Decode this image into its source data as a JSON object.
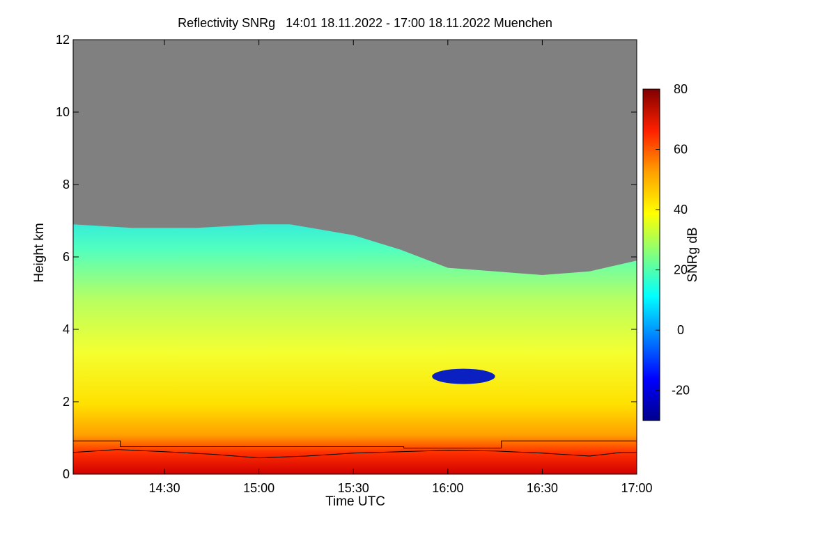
{
  "chart_data": {
    "type": "heatmap",
    "title": "Reflectivity SNRg   14:01 18.11.2022 - 17:00 18.11.2022 Muenchen",
    "xlabel": "Time UTC",
    "ylabel": "Height km",
    "xlim": [
      "14:01",
      "17:00"
    ],
    "ylim": [
      0,
      12
    ],
    "x_ticks": [
      "14:30",
      "15:00",
      "15:30",
      "16:00",
      "16:30",
      "17:00"
    ],
    "y_ticks": [
      "0",
      "2",
      "4",
      "6",
      "8",
      "10",
      "12"
    ],
    "colorbar": {
      "label": "SNRg dB",
      "range": [
        -30,
        80
      ],
      "ticks": [
        "-20",
        "0",
        "20",
        "40",
        "60",
        "80"
      ],
      "colors": [
        "#00008b",
        "#0000ff",
        "#0080ff",
        "#00ffff",
        "#80ff80",
        "#ffff00",
        "#ffa000",
        "#ff2000",
        "#800000"
      ]
    },
    "background_color": "#808080",
    "echo_top_km": {
      "times": [
        "14:01",
        "14:20",
        "14:40",
        "15:00",
        "15:10",
        "15:30",
        "15:45",
        "16:00",
        "16:15",
        "16:30",
        "16:45",
        "17:00"
      ],
      "heights": [
        6.9,
        6.8,
        6.8,
        6.9,
        6.9,
        6.6,
        6.2,
        5.7,
        5.6,
        5.5,
        5.6,
        5.9
      ]
    },
    "cloud_base_km": {
      "times": [
        "14:01",
        "14:15",
        "14:30",
        "14:45",
        "15:00",
        "15:15",
        "15:30",
        "15:45",
        "16:00",
        "16:15",
        "16:30",
        "16:45",
        "16:55",
        "17:00"
      ],
      "heights": [
        0.6,
        0.68,
        0.62,
        0.55,
        0.45,
        0.5,
        0.58,
        0.62,
        0.66,
        0.64,
        0.58,
        0.5,
        0.6,
        0.6
      ]
    },
    "mixing_layer_km": {
      "times": [
        "14:01",
        "14:16",
        "14:16",
        "15:46",
        "15:46",
        "16:17",
        "16:17",
        "17:00"
      ],
      "heights": [
        0.92,
        0.92,
        0.76,
        0.76,
        0.72,
        0.72,
        0.92,
        0.92
      ]
    },
    "dry_layer": {
      "time_range": [
        "15:55",
        "16:15"
      ],
      "height_km": 2.7
    }
  }
}
